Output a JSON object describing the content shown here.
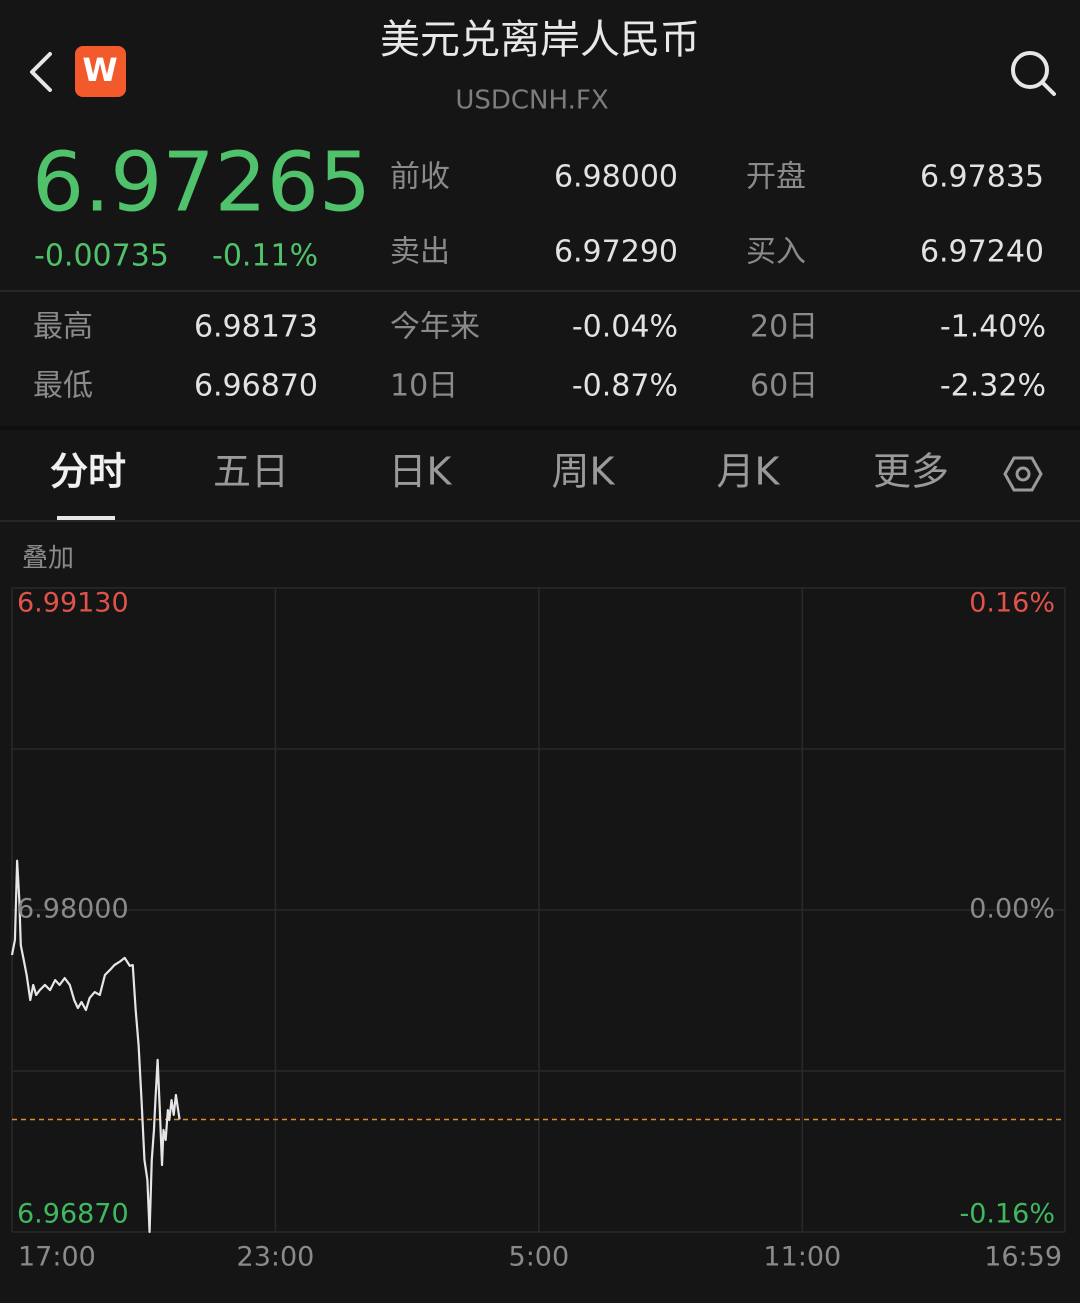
{
  "header": {
    "title": "美元兑离岸人民币",
    "subtitle": "USDCNH.FX",
    "logo": "W"
  },
  "quote": {
    "price": "6.97265",
    "change": "-0.00735",
    "change_percent": "-0.11%"
  },
  "stats_top": [
    [
      {
        "label": "前收",
        "value": "6.98000"
      },
      {
        "label": "开盘",
        "value": "6.97835"
      }
    ],
    [
      {
        "label": "卖出",
        "value": "6.97290"
      },
      {
        "label": "买入",
        "value": "6.97240"
      }
    ]
  ],
  "stats_bottom": [
    [
      {
        "label": "最高",
        "value": "6.98173"
      },
      {
        "label": "今年来",
        "value": "-0.04%"
      },
      {
        "label": "20日",
        "value": "-1.40%"
      }
    ],
    [
      {
        "label": "最低",
        "value": "6.96870"
      },
      {
        "label": "10日",
        "value": "-0.87%"
      },
      {
        "label": "60日",
        "value": "-2.32%"
      }
    ]
  ],
  "tabs": [
    "分时",
    "五日",
    "日K",
    "周K",
    "月K",
    "更多"
  ],
  "active_tab": 0,
  "overlay_label": "叠加",
  "chart_data": {
    "type": "line",
    "x": [
      0,
      4,
      7,
      10,
      12,
      16,
      20,
      25,
      29,
      33,
      38,
      45,
      52,
      59,
      65,
      72,
      79,
      85,
      90,
      95,
      101,
      106,
      113,
      120,
      127,
      134,
      140,
      147,
      154,
      161,
      165,
      169,
      173,
      177,
      181,
      185,
      188,
      191,
      194,
      196,
      199,
      202,
      205,
      207,
      210,
      213,
      215,
      218,
      221,
      224,
      226,
      229
    ],
    "series": [
      {
        "color": "#e6e6e6",
        "values": [
          6.97842,
          6.97895,
          6.98173,
          6.98035,
          6.97877,
          6.97825,
          6.97772,
          6.97684,
          6.97737,
          6.97702,
          6.97719,
          6.97737,
          6.97719,
          6.97754,
          6.97737,
          6.97761,
          6.97737,
          6.97684,
          6.97656,
          6.97677,
          6.97649,
          6.97691,
          6.97712,
          6.97702,
          6.97772,
          6.9779,
          6.97807,
          6.97818,
          6.97832,
          6.97804,
          6.97807,
          6.97649,
          6.97526,
          6.97333,
          6.97123,
          6.97053,
          6.9687,
          6.97123,
          6.97228,
          6.97333,
          6.97474,
          6.97298,
          6.97105,
          6.97228,
          6.97193,
          6.97298,
          6.97263,
          6.97333,
          6.97281,
          6.97351,
          6.97316,
          6.97265
        ]
      }
    ],
    "xlim": [
      0,
      1439
    ],
    "xticks": [
      {
        "value": 0,
        "label": "17:00"
      },
      {
        "value": 360,
        "label": "23:00"
      },
      {
        "value": 720,
        "label": "5:00"
      },
      {
        "value": 1080,
        "label": "11:00"
      },
      {
        "value": 1439,
        "label": "16:59"
      }
    ],
    "ylim": [
      6.9687,
      6.9913
    ],
    "yticks": [
      {
        "value": 6.9687,
        "label": "6.96870"
      },
      {
        "value": 6.98,
        "label": "6.98000"
      },
      {
        "value": 6.9913,
        "label": "6.99130"
      }
    ],
    "y2lim": [
      -0.16,
      0.16
    ],
    "y2ticks": [
      {
        "value": -0.16,
        "label": "-0.16%"
      },
      {
        "value": 0,
        "label": "0.00%"
      },
      {
        "value": 0.16,
        "label": "0.16%"
      }
    ],
    "tick_colors": [
      "#3fb85f",
      "#8a8a8a",
      "#e0524a"
    ],
    "reference_line": 6.97265,
    "reference_color": "#e08a2a",
    "grid": true
  }
}
